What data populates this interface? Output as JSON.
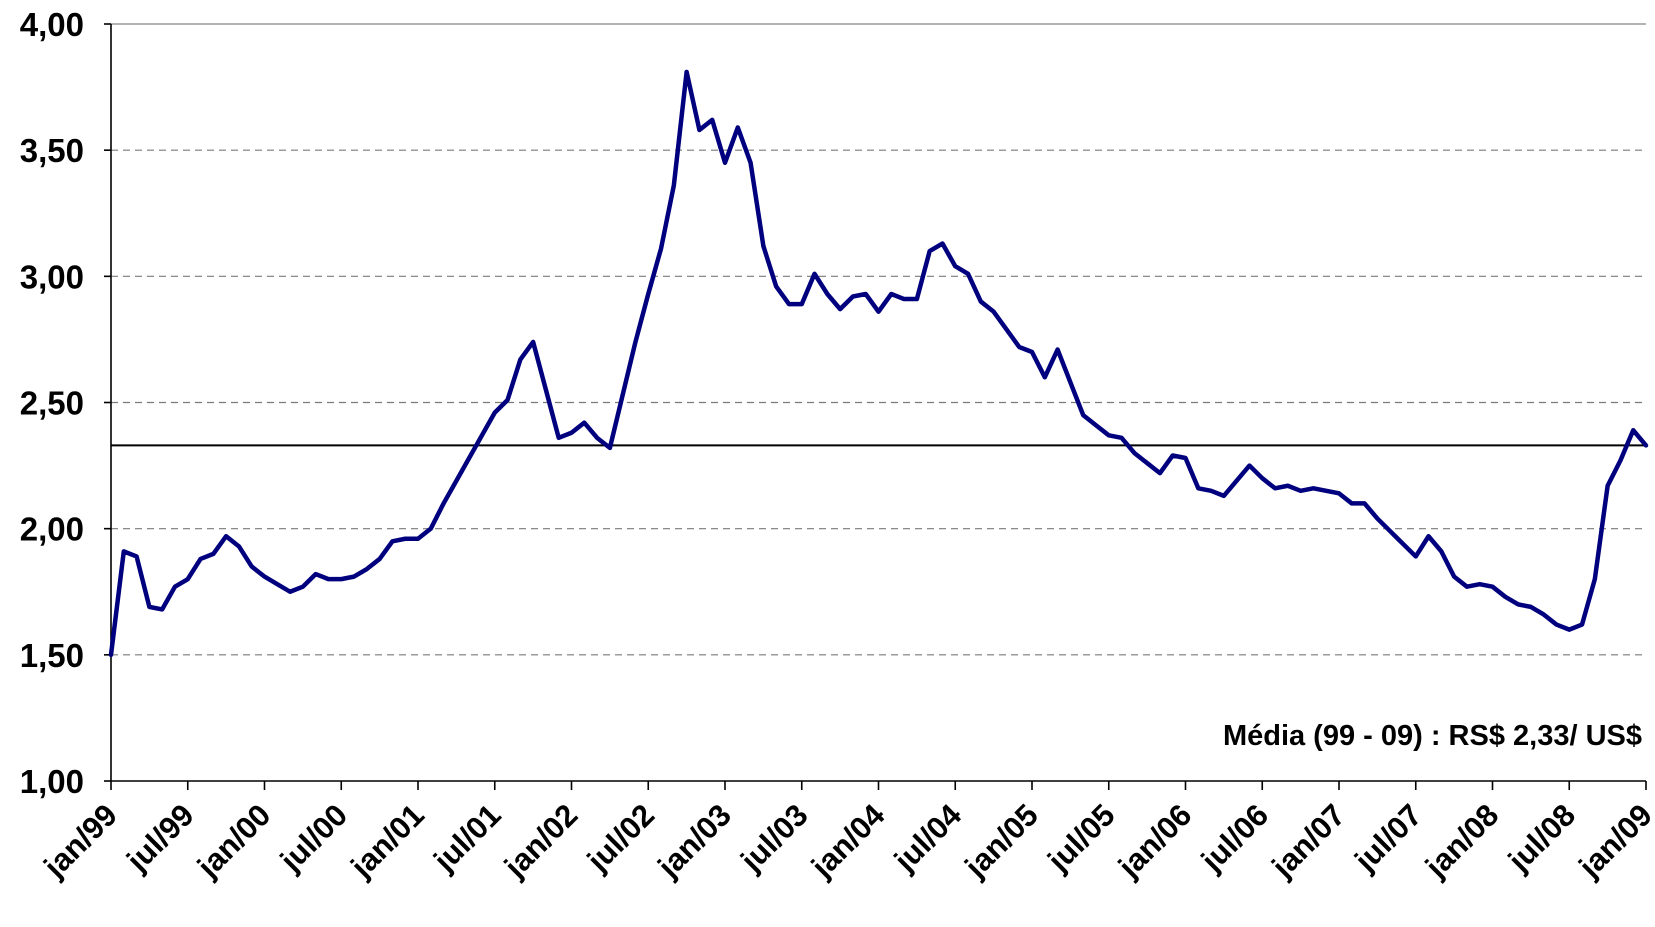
{
  "chart_data": {
    "type": "line",
    "ylim": [
      1.0,
      4.0
    ],
    "y_ticks": [
      "1,00",
      "1,50",
      "2,00",
      "2,50",
      "3,00",
      "3,50",
      "4,00"
    ],
    "y_tick_values": [
      1.0,
      1.5,
      2.0,
      2.5,
      3.0,
      3.5,
      4.0
    ],
    "x_tick_labels": [
      "jan/99",
      "jul/99",
      "jan/00",
      "jul/00",
      "jan/01",
      "jul/01",
      "jan/02",
      "jul/02",
      "jan/03",
      "jul/03",
      "jan/04",
      "jul/04",
      "jan/05",
      "jul/05",
      "jan/06",
      "jul/06",
      "jan/07",
      "jul/07",
      "jan/08",
      "jul/08",
      "jan/09"
    ],
    "x_tick_months": [
      0,
      6,
      12,
      18,
      24,
      30,
      36,
      42,
      48,
      54,
      60,
      66,
      72,
      78,
      84,
      90,
      96,
      102,
      108,
      114,
      120
    ],
    "x_domain_months": [
      0,
      120
    ],
    "grid": "horizontal-dashed",
    "series": [
      {
        "color": "#00007f",
        "x_months": [
          0,
          1,
          2,
          3,
          4,
          5,
          6,
          7,
          8,
          9,
          10,
          11,
          12,
          13,
          14,
          15,
          16,
          17,
          18,
          19,
          20,
          21,
          22,
          23,
          24,
          25,
          26,
          27,
          28,
          29,
          30,
          31,
          32,
          33,
          34,
          35,
          36,
          37,
          38,
          39,
          40,
          41,
          42,
          43,
          44,
          45,
          46,
          47,
          48,
          49,
          50,
          51,
          52,
          53,
          54,
          55,
          56,
          57,
          58,
          59,
          60,
          61,
          62,
          63,
          64,
          65,
          66,
          67,
          68,
          69,
          70,
          71,
          72,
          73,
          74,
          75,
          76,
          77,
          78,
          79,
          80,
          81,
          82,
          83,
          84,
          85,
          86,
          87,
          88,
          89,
          90,
          91,
          92,
          93,
          94,
          95,
          96,
          97,
          98,
          99,
          100,
          101,
          102,
          103,
          104,
          105,
          106,
          107,
          108,
          109,
          110,
          111,
          112,
          113,
          114,
          115,
          116,
          117,
          118,
          119,
          120
        ],
        "values": [
          1.5,
          1.91,
          1.89,
          1.69,
          1.68,
          1.77,
          1.8,
          1.88,
          1.9,
          1.97,
          1.93,
          1.85,
          1.81,
          1.78,
          1.75,
          1.77,
          1.82,
          1.8,
          1.8,
          1.81,
          1.84,
          1.88,
          1.95,
          1.96,
          1.96,
          2.0,
          2.1,
          2.19,
          2.28,
          2.37,
          2.46,
          2.51,
          2.67,
          2.74,
          2.55,
          2.36,
          2.38,
          2.42,
          2.36,
          2.32,
          2.53,
          2.74,
          2.93,
          3.11,
          3.36,
          3.81,
          3.58,
          3.62,
          3.45,
          3.59,
          3.45,
          3.12,
          2.96,
          2.89,
          2.89,
          3.01,
          2.93,
          2.87,
          2.92,
          2.93,
          2.86,
          2.93,
          2.91,
          2.91,
          3.1,
          3.13,
          3.04,
          3.01,
          2.9,
          2.86,
          2.79,
          2.72,
          2.7,
          2.6,
          2.71,
          2.58,
          2.45,
          2.41,
          2.37,
          2.36,
          2.3,
          2.26,
          2.22,
          2.29,
          2.28,
          2.16,
          2.15,
          2.13,
          2.19,
          2.25,
          2.2,
          2.16,
          2.17,
          2.15,
          2.16,
          2.15,
          2.14,
          2.1,
          2.1,
          2.04,
          1.99,
          1.94,
          1.89,
          1.97,
          1.91,
          1.81,
          1.77,
          1.78,
          1.77,
          1.73,
          1.7,
          1.69,
          1.66,
          1.62,
          1.6,
          1.62,
          1.8,
          2.17,
          2.27,
          2.39,
          2.33
        ]
      }
    ],
    "reference_lines": [
      {
        "value": 2.33,
        "color": "#000000"
      }
    ],
    "annotation": "Média (99 - 09) : RS$ 2,33/ US$"
  }
}
